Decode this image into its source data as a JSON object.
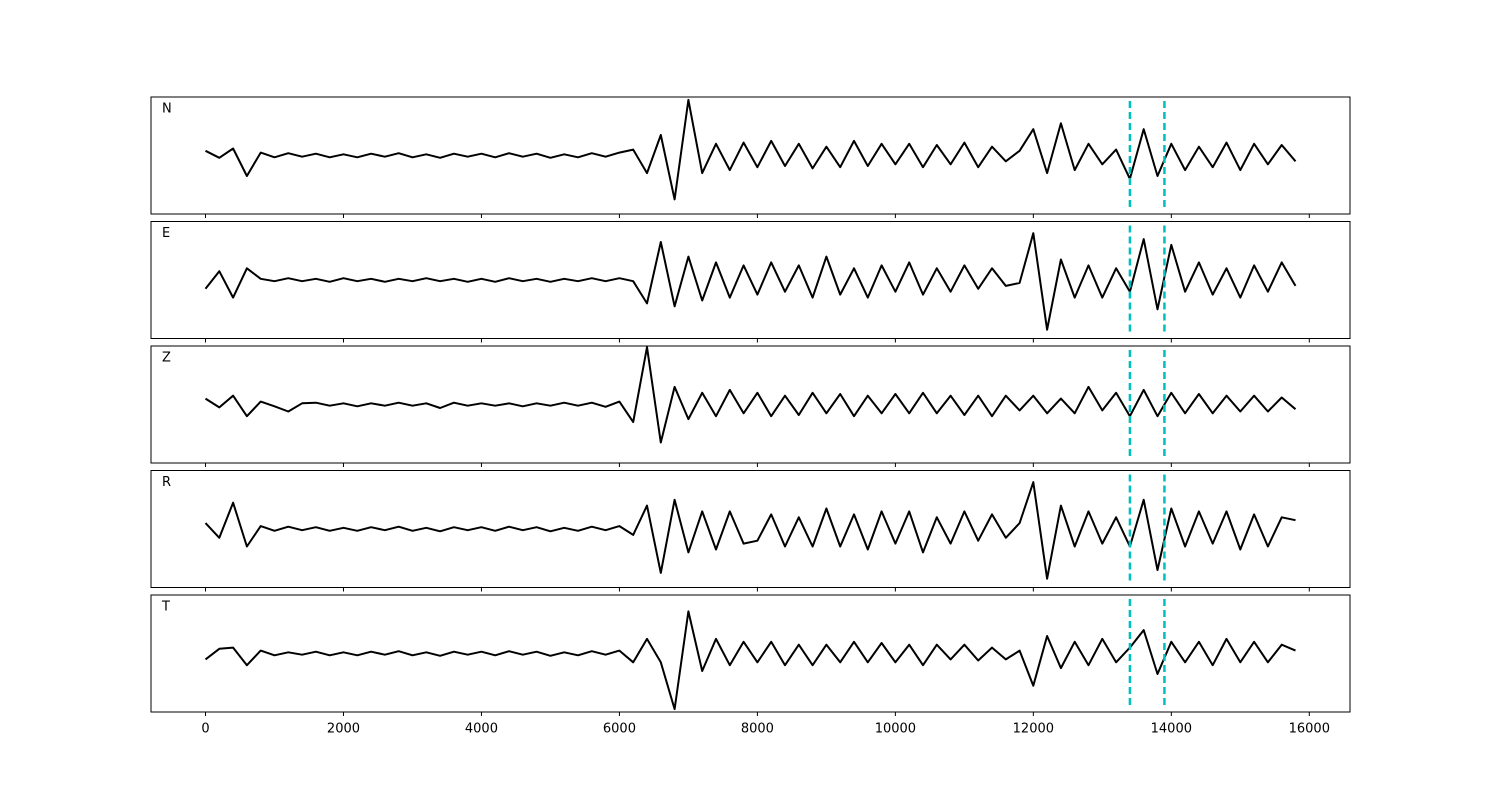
{
  "chart_data": [
    {
      "type": "line",
      "label": "N",
      "color": "#000000",
      "vline_color": "#00bfbf",
      "vlines": [
        13400,
        13900
      ],
      "xlim": [
        -790,
        16590
      ],
      "ylim": [
        -1,
        1
      ],
      "xticks": [
        0,
        2000,
        4000,
        6000,
        8000,
        10000,
        12000,
        14000,
        16000
      ],
      "x": [
        0,
        200,
        400,
        600,
        800,
        1000,
        1200,
        1400,
        1600,
        1800,
        2000,
        2200,
        2400,
        2600,
        2800,
        3000,
        3200,
        3400,
        3600,
        3800,
        4000,
        4200,
        4400,
        4600,
        4800,
        5000,
        5200,
        5400,
        5600,
        5800,
        6000,
        6200,
        6400,
        6600,
        6800,
        7000,
        7200,
        7400,
        7600,
        7800,
        8000,
        8200,
        8400,
        8600,
        8800,
        9000,
        9200,
        9400,
        9600,
        9800,
        10000,
        10200,
        10400,
        10600,
        10800,
        11000,
        11200,
        11400,
        11600,
        11800,
        12000,
        12200,
        12400,
        12600,
        12800,
        13000,
        13200,
        13400,
        13600,
        13800,
        14000,
        14200,
        14400,
        14600,
        14800,
        15000,
        15200,
        15400,
        15600,
        15800
      ],
      "values": [
        0.08,
        -0.04,
        0.12,
        -0.35,
        0.05,
        -0.03,
        0.04,
        -0.02,
        0.03,
        -0.03,
        0.02,
        -0.03,
        0.03,
        -0.02,
        0.04,
        -0.03,
        0.02,
        -0.04,
        0.03,
        -0.02,
        0.03,
        -0.03,
        0.04,
        -0.02,
        0.03,
        -0.04,
        0.02,
        -0.03,
        0.04,
        -0.02,
        0.05,
        0.1,
        -0.3,
        0.35,
        -0.75,
        0.95,
        -0.3,
        0.2,
        -0.25,
        0.22,
        -0.2,
        0.25,
        -0.18,
        0.2,
        -0.22,
        0.15,
        -0.2,
        0.25,
        -0.18,
        0.2,
        -0.15,
        0.2,
        -0.2,
        0.18,
        -0.15,
        0.22,
        -0.2,
        0.15,
        -0.1,
        0.08,
        0.45,
        -0.3,
        0.55,
        -0.25,
        0.2,
        -0.15,
        0.1,
        -0.4,
        0.45,
        -0.35,
        0.2,
        -0.25,
        0.15,
        -0.2,
        0.22,
        -0.25,
        0.2,
        -0.15,
        0.18,
        -0.1
      ]
    },
    {
      "type": "line",
      "label": "E",
      "color": "#000000",
      "vline_color": "#00bfbf",
      "vlines": [
        13400,
        13900
      ],
      "xlim": [
        -790,
        16590
      ],
      "ylim": [
        -1,
        1
      ],
      "xticks": [
        0,
        2000,
        4000,
        6000,
        8000,
        10000,
        12000,
        14000,
        16000
      ],
      "x": [
        0,
        200,
        400,
        600,
        800,
        1000,
        1200,
        1400,
        1600,
        1800,
        2000,
        2200,
        2400,
        2600,
        2800,
        3000,
        3200,
        3400,
        3600,
        3800,
        4000,
        4200,
        4400,
        4600,
        4800,
        5000,
        5200,
        5400,
        5600,
        5800,
        6000,
        6200,
        6400,
        6600,
        6800,
        7000,
        7200,
        7400,
        7600,
        7800,
        8000,
        8200,
        8400,
        8600,
        8800,
        9000,
        9200,
        9400,
        9600,
        9800,
        10000,
        10200,
        10400,
        10600,
        10800,
        11000,
        11200,
        11400,
        11600,
        11800,
        12000,
        12200,
        12400,
        12600,
        12800,
        13000,
        13200,
        13400,
        13600,
        13800,
        14000,
        14200,
        14400,
        14600,
        14800,
        15000,
        15200,
        15400,
        15600,
        15800
      ],
      "values": [
        -0.15,
        0.15,
        -0.3,
        0.2,
        0.02,
        -0.02,
        0.03,
        -0.02,
        0.02,
        -0.03,
        0.03,
        -0.02,
        0.02,
        -0.03,
        0.02,
        -0.02,
        0.03,
        -0.02,
        0.02,
        -0.03,
        0.02,
        -0.03,
        0.03,
        -0.02,
        0.02,
        -0.03,
        0.02,
        -0.02,
        0.03,
        -0.02,
        0.03,
        -0.02,
        -0.4,
        0.65,
        -0.45,
        0.4,
        -0.35,
        0.3,
        -0.3,
        0.25,
        -0.25,
        0.3,
        -0.2,
        0.25,
        -0.3,
        0.4,
        -0.25,
        0.2,
        -0.3,
        0.25,
        -0.2,
        0.3,
        -0.25,
        0.2,
        -0.2,
        0.25,
        -0.15,
        0.2,
        -0.1,
        -0.05,
        0.8,
        -0.85,
        0.35,
        -0.3,
        0.25,
        -0.3,
        0.2,
        -0.2,
        0.7,
        -0.5,
        0.6,
        -0.2,
        0.3,
        -0.25,
        0.2,
        -0.3,
        0.25,
        -0.2,
        0.3,
        -0.1
      ]
    },
    {
      "type": "line",
      "label": "Z",
      "color": "#000000",
      "vline_color": "#00bfbf",
      "vlines": [
        13400,
        13900
      ],
      "xlim": [
        -790,
        16590
      ],
      "ylim": [
        -1,
        1
      ],
      "xticks": [
        0,
        2000,
        4000,
        6000,
        8000,
        10000,
        12000,
        14000,
        16000
      ],
      "x": [
        0,
        200,
        400,
        600,
        800,
        1000,
        1200,
        1400,
        1600,
        1800,
        2000,
        2200,
        2400,
        2600,
        2800,
        3000,
        3200,
        3400,
        3600,
        3800,
        4000,
        4200,
        4400,
        4600,
        4800,
        5000,
        5200,
        5400,
        5600,
        5800,
        6000,
        6200,
        6400,
        6600,
        6800,
        7000,
        7200,
        7400,
        7600,
        7800,
        8000,
        8200,
        8400,
        8600,
        8800,
        9000,
        9200,
        9400,
        9600,
        9800,
        10000,
        10200,
        10400,
        10600,
        10800,
        11000,
        11200,
        11400,
        11600,
        11800,
        12000,
        12200,
        12400,
        12600,
        12800,
        13000,
        13200,
        13400,
        13600,
        13800,
        14000,
        14200,
        14400,
        14600,
        14800,
        15000,
        15200,
        15400,
        15600,
        15800
      ],
      "values": [
        0.1,
        -0.05,
        0.15,
        -0.2,
        0.05,
        -0.03,
        -0.12,
        0.02,
        0.03,
        -0.02,
        0.02,
        -0.03,
        0.02,
        -0.02,
        0.03,
        -0.02,
        0.02,
        -0.06,
        0.03,
        -0.02,
        0.02,
        -0.02,
        0.02,
        -0.03,
        0.02,
        -0.02,
        0.03,
        -0.02,
        0.03,
        -0.04,
        0.05,
        -0.3,
        0.98,
        -0.65,
        0.3,
        -0.25,
        0.2,
        -0.2,
        0.25,
        -0.15,
        0.2,
        -0.2,
        0.15,
        -0.18,
        0.2,
        -0.15,
        0.18,
        -0.2,
        0.15,
        -0.15,
        0.18,
        -0.15,
        0.2,
        -0.15,
        0.15,
        -0.18,
        0.15,
        -0.2,
        0.15,
        -0.1,
        0.15,
        -0.15,
        0.1,
        -0.15,
        0.3,
        -0.1,
        0.2,
        -0.2,
        0.25,
        -0.2,
        0.2,
        -0.15,
        0.18,
        -0.15,
        0.15,
        -0.12,
        0.15,
        -0.12,
        0.12,
        -0.08
      ]
    },
    {
      "type": "line",
      "label": "R",
      "color": "#000000",
      "vline_color": "#00bfbf",
      "vlines": [
        13400,
        13900
      ],
      "xlim": [
        -790,
        16590
      ],
      "ylim": [
        -1,
        1
      ],
      "xticks": [
        0,
        2000,
        4000,
        6000,
        8000,
        10000,
        12000,
        14000,
        16000
      ],
      "x": [
        0,
        200,
        400,
        600,
        800,
        1000,
        1200,
        1400,
        1600,
        1800,
        2000,
        2200,
        2400,
        2600,
        2800,
        3000,
        3200,
        3400,
        3600,
        3800,
        4000,
        4200,
        4400,
        4600,
        4800,
        5000,
        5200,
        5400,
        5600,
        5800,
        6000,
        6200,
        6400,
        6600,
        6800,
        7000,
        7200,
        7400,
        7600,
        7800,
        8000,
        8200,
        8400,
        8600,
        8800,
        9000,
        9200,
        9400,
        9600,
        9800,
        10000,
        10200,
        10400,
        10600,
        10800,
        11000,
        11200,
        11400,
        11600,
        11800,
        12000,
        12200,
        12400,
        12600,
        12800,
        13000,
        13200,
        13400,
        13600,
        13800,
        14000,
        14200,
        14400,
        14600,
        14800,
        15000,
        15200,
        15400,
        15600,
        15800
      ],
      "values": [
        0.1,
        -0.15,
        0.45,
        -0.3,
        0.05,
        -0.03,
        0.04,
        -0.02,
        0.03,
        -0.03,
        0.02,
        -0.03,
        0.03,
        -0.02,
        0.04,
        -0.03,
        0.02,
        -0.04,
        0.03,
        -0.02,
        0.03,
        -0.03,
        0.04,
        -0.02,
        0.03,
        -0.04,
        0.02,
        -0.03,
        0.04,
        -0.02,
        0.05,
        -0.1,
        0.4,
        -0.75,
        0.5,
        -0.4,
        0.3,
        -0.35,
        0.3,
        -0.25,
        -0.2,
        0.25,
        -0.3,
        0.2,
        -0.3,
        0.35,
        -0.3,
        0.25,
        -0.35,
        0.3,
        -0.25,
        0.3,
        -0.4,
        0.2,
        -0.25,
        0.3,
        -0.2,
        0.25,
        -0.15,
        0.1,
        0.8,
        -0.85,
        0.4,
        -0.3,
        0.3,
        -0.25,
        0.2,
        -0.3,
        0.5,
        -0.7,
        0.35,
        -0.3,
        0.3,
        -0.25,
        0.3,
        -0.35,
        0.25,
        -0.3,
        0.2,
        0.15
      ]
    },
    {
      "type": "line",
      "label": "T",
      "color": "#000000",
      "vline_color": "#00bfbf",
      "vlines": [
        13400,
        13900
      ],
      "xlim": [
        -790,
        16590
      ],
      "ylim": [
        -1,
        1
      ],
      "xticks": [
        0,
        2000,
        4000,
        6000,
        8000,
        10000,
        12000,
        14000,
        16000
      ],
      "x": [
        0,
        200,
        400,
        600,
        800,
        1000,
        1200,
        1400,
        1600,
        1800,
        2000,
        2200,
        2400,
        2600,
        2800,
        3000,
        3200,
        3400,
        3600,
        3800,
        4000,
        4200,
        4400,
        4600,
        4800,
        5000,
        5200,
        5400,
        5600,
        5800,
        6000,
        6200,
        6400,
        6600,
        6800,
        7000,
        7200,
        7400,
        7600,
        7800,
        8000,
        8200,
        8400,
        8600,
        8800,
        9000,
        9200,
        9400,
        9600,
        9800,
        10000,
        10200,
        10400,
        10600,
        10800,
        11000,
        11200,
        11400,
        11600,
        11800,
        12000,
        12200,
        12400,
        12600,
        12800,
        13000,
        13200,
        13400,
        13600,
        13800,
        14000,
        14200,
        14400,
        14600,
        14800,
        15000,
        15200,
        15400,
        15600,
        15800
      ],
      "values": [
        -0.1,
        0.08,
        0.1,
        -0.2,
        0.05,
        -0.03,
        0.02,
        -0.02,
        0.03,
        -0.03,
        0.02,
        -0.03,
        0.03,
        -0.02,
        0.04,
        -0.03,
        0.02,
        -0.04,
        0.03,
        -0.02,
        0.03,
        -0.03,
        0.04,
        -0.02,
        0.03,
        -0.04,
        0.02,
        -0.03,
        0.04,
        -0.02,
        0.05,
        -0.15,
        0.25,
        -0.15,
        -0.95,
        0.72,
        -0.3,
        0.25,
        -0.2,
        0.2,
        -0.15,
        0.2,
        -0.2,
        0.15,
        -0.2,
        0.15,
        -0.15,
        0.2,
        -0.15,
        0.18,
        -0.15,
        0.15,
        -0.2,
        0.15,
        -0.1,
        0.15,
        -0.12,
        0.1,
        -0.1,
        0.05,
        -0.55,
        0.3,
        -0.25,
        0.2,
        -0.2,
        0.25,
        -0.15,
        0.1,
        0.4,
        -0.35,
        0.2,
        -0.15,
        0.2,
        -0.2,
        0.25,
        -0.15,
        0.2,
        -0.15,
        0.15,
        0.05
      ]
    }
  ]
}
